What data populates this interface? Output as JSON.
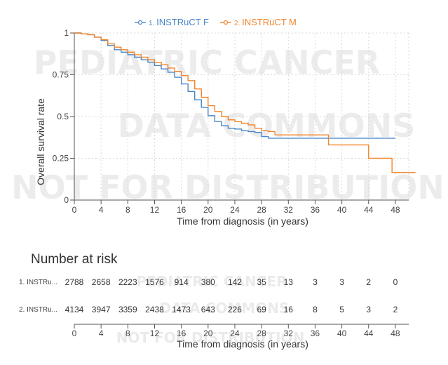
{
  "chart_data": {
    "type": "line",
    "legend": {
      "placement": "top-center"
    },
    "xlabel": "Time from diagnosis (in years)",
    "ylabel": "Overall survival rate",
    "xlim": [
      0,
      50
    ],
    "ylim": [
      0,
      1
    ],
    "x_ticks": [
      0,
      4,
      8,
      12,
      16,
      20,
      24,
      28,
      32,
      36,
      40,
      44,
      48
    ],
    "y_ticks": [
      0,
      0.25,
      0.5,
      0.75,
      1
    ],
    "y_tick_labels": [
      "0",
      "0.25",
      "0.5",
      "0.75",
      "1"
    ],
    "grid": true,
    "series": [
      {
        "name": "1. INSTRuCT F",
        "color": "#4a86c8",
        "points": [
          [
            0,
            1
          ],
          [
            1,
            0.995
          ],
          [
            2,
            0.99
          ],
          [
            3,
            0.975
          ],
          [
            4,
            0.955
          ],
          [
            5,
            0.925
          ],
          [
            6,
            0.9
          ],
          [
            7,
            0.885
          ],
          [
            8,
            0.87
          ],
          [
            9,
            0.855
          ],
          [
            10,
            0.84
          ],
          [
            11,
            0.825
          ],
          [
            12,
            0.805
          ],
          [
            13,
            0.785
          ],
          [
            14,
            0.765
          ],
          [
            15,
            0.735
          ],
          [
            16,
            0.695
          ],
          [
            17,
            0.65
          ],
          [
            18,
            0.6
          ],
          [
            19,
            0.555
          ],
          [
            20,
            0.505
          ],
          [
            21,
            0.47
          ],
          [
            22,
            0.445
          ],
          [
            23,
            0.43
          ],
          [
            24,
            0.425
          ],
          [
            25,
            0.415
          ],
          [
            26,
            0.41
          ],
          [
            27,
            0.405
          ],
          [
            28,
            0.38
          ],
          [
            29,
            0.37
          ],
          [
            48,
            0.37
          ]
        ]
      },
      {
        "name": "2. INSTRuCT M",
        "color": "#f0852d",
        "points": [
          [
            0,
            1
          ],
          [
            1,
            0.995
          ],
          [
            2,
            0.99
          ],
          [
            3,
            0.975
          ],
          [
            4,
            0.96
          ],
          [
            5,
            0.935
          ],
          [
            6,
            0.915
          ],
          [
            7,
            0.9
          ],
          [
            8,
            0.885
          ],
          [
            9,
            0.87
          ],
          [
            10,
            0.855
          ],
          [
            11,
            0.84
          ],
          [
            12,
            0.825
          ],
          [
            13,
            0.81
          ],
          [
            14,
            0.79
          ],
          [
            15,
            0.77
          ],
          [
            16,
            0.745
          ],
          [
            17,
            0.715
          ],
          [
            18,
            0.665
          ],
          [
            19,
            0.615
          ],
          [
            20,
            0.565
          ],
          [
            21,
            0.53
          ],
          [
            22,
            0.5
          ],
          [
            23,
            0.48
          ],
          [
            24,
            0.47
          ],
          [
            25,
            0.46
          ],
          [
            26,
            0.45
          ],
          [
            27,
            0.43
          ],
          [
            28,
            0.415
          ],
          [
            29,
            0.41
          ],
          [
            30,
            0.39
          ],
          [
            38,
            0.39
          ],
          [
            38,
            0.33
          ],
          [
            44,
            0.33
          ],
          [
            44,
            0.25
          ],
          [
            47.5,
            0.25
          ],
          [
            47.5,
            0.165
          ],
          [
            51,
            0.165
          ]
        ]
      }
    ],
    "risk_table": {
      "title": "Number at risk",
      "xlabel": "Time from diagnosis (in years)",
      "x_ticks": [
        0,
        4,
        8,
        12,
        16,
        20,
        24,
        28,
        32,
        36,
        40,
        44,
        48
      ],
      "rows": [
        {
          "label": "1. INSTRu...",
          "values": [
            2788,
            2658,
            2223,
            1576,
            914,
            380,
            142,
            35,
            13,
            3,
            3,
            2,
            0
          ]
        },
        {
          "label": "2. INSTRu...",
          "values": [
            4134,
            3947,
            3359,
            2438,
            1473,
            643,
            226,
            69,
            16,
            8,
            5,
            3,
            2
          ]
        }
      ]
    }
  },
  "watermark": {
    "line1": "PEDIATRIC CANCER",
    "line2": "DATA COMMONS",
    "line3": "NOT FOR DISTRIBUTION"
  }
}
